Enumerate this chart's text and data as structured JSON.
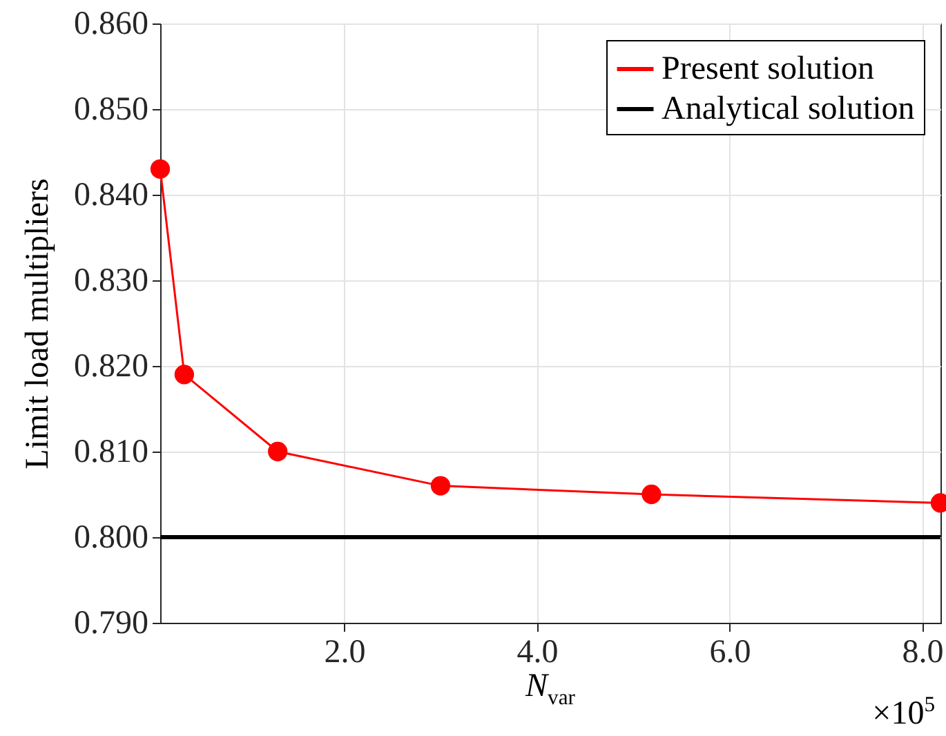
{
  "chart_data": {
    "type": "line",
    "xlabel": "N$_{var}$",
    "ylabel": "Limit load multipliers",
    "annotations": [
      "×10$^{5}$"
    ],
    "xlim": [
      0.09,
      8.19
    ],
    "xticks": [
      {
        "value": 2,
        "label": "2.0"
      },
      {
        "value": 4,
        "label": "4.0"
      },
      {
        "value": 6,
        "label": "6.0"
      },
      {
        "value": 8,
        "label": "8.0"
      }
    ],
    "ylim": [
      0.79,
      0.86
    ],
    "yticks": [
      {
        "value": 0.79,
        "label": "0.790"
      },
      {
        "value": 0.8,
        "label": "0.800"
      },
      {
        "value": 0.81,
        "label": "0.810"
      },
      {
        "value": 0.82,
        "label": "0.820"
      },
      {
        "value": 0.83,
        "label": "0.830"
      },
      {
        "value": 0.84,
        "label": "0.840"
      },
      {
        "value": 0.85,
        "label": "0.850"
      },
      {
        "value": 0.86,
        "label": "0.860"
      }
    ],
    "grid": true,
    "legend": "top right",
    "marker": "circle",
    "line_style": "solid",
    "series": [
      {
        "name": "Present solution",
        "color": "#ff0000",
        "x": [
          0.09,
          0.34,
          1.31,
          3.0,
          5.19,
          8.19
        ],
        "values": [
          0.843,
          0.819,
          0.81,
          0.806,
          0.805,
          0.804
        ]
      },
      {
        "name": "Analytical solution",
        "color": "#000000",
        "marker": "none",
        "x": [
          0.09,
          8.19
        ],
        "values": [
          0.8,
          0.8
        ]
      }
    ]
  }
}
